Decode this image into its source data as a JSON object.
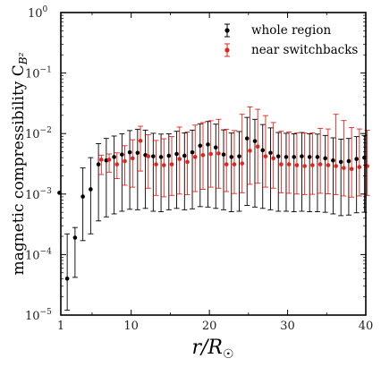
{
  "chart_data": {
    "type": "scatter",
    "title": "",
    "xlabel": "r/R",
    "xlabel_sub": "☉",
    "ylabel": "magnetic compressibility C",
    "ylabel_sub": "B²",
    "xlim": [
      1,
      40
    ],
    "ylim": [
      1e-05,
      1
    ],
    "yscale": "log",
    "grid": false,
    "legend_position": "top-right",
    "x_ticks": [
      1,
      10,
      20,
      30,
      40
    ],
    "x_tick_labels": [
      "1",
      "10",
      "20",
      "30",
      "40"
    ],
    "y_ticks": [
      -5,
      -4,
      -3,
      -2,
      -1,
      0
    ],
    "y_tick_base": "10",
    "y_tick_exponents": [
      "−5",
      "−4",
      "−3",
      "−2",
      "−1",
      "0"
    ],
    "series": [
      {
        "name": "whole region",
        "color": "#000000",
        "points": [
          {
            "x": 1,
            "y": 0.00105,
            "lo": null,
            "hi": null
          },
          {
            "x": 2,
            "y": 4e-05,
            "lo": 1.2e-05,
            "hi": 0.00022
          },
          {
            "x": 3,
            "y": 0.00019,
            "lo": 4.2e-05,
            "hi": 0.00028
          },
          {
            "x": 4,
            "y": 0.00091,
            "lo": 0.00017,
            "hi": 0.0027
          },
          {
            "x": 5,
            "y": 0.0012,
            "lo": 0.00022,
            "hi": 0.004
          },
          {
            "x": 6,
            "y": 0.0031,
            "lo": 0.00036,
            "hi": 0.0068
          },
          {
            "x": 7,
            "y": 0.0036,
            "lo": 0.00042,
            "hi": 0.0083
          },
          {
            "x": 8,
            "y": 0.0041,
            "lo": 0.00047,
            "hi": 0.0091
          },
          {
            "x": 9,
            "y": 0.0045,
            "lo": 0.00052,
            "hi": 0.0099
          },
          {
            "x": 10,
            "y": 0.0049,
            "lo": 0.00056,
            "hi": 0.0112
          },
          {
            "x": 11,
            "y": 0.0048,
            "lo": 0.00055,
            "hi": 0.0118
          },
          {
            "x": 12,
            "y": 0.0044,
            "lo": 0.00058,
            "hi": 0.0114
          },
          {
            "x": 13,
            "y": 0.0042,
            "lo": 0.00052,
            "hi": 0.0101
          },
          {
            "x": 14,
            "y": 0.0041,
            "lo": 0.00051,
            "hi": 0.0098
          },
          {
            "x": 15,
            "y": 0.0043,
            "lo": 0.00055,
            "hi": 0.0099
          },
          {
            "x": 16,
            "y": 0.0046,
            "lo": 0.00058,
            "hi": 0.0109
          },
          {
            "x": 17,
            "y": 0.0043,
            "lo": 0.00055,
            "hi": 0.0102
          },
          {
            "x": 18,
            "y": 0.0049,
            "lo": 0.00057,
            "hi": 0.0114
          },
          {
            "x": 19,
            "y": 0.0063,
            "lo": 0.00062,
            "hi": 0.0145
          },
          {
            "x": 20,
            "y": 0.0066,
            "lo": 0.00061,
            "hi": 0.0158
          },
          {
            "x": 21,
            "y": 0.0059,
            "lo": 0.00058,
            "hi": 0.0143
          },
          {
            "x": 22,
            "y": 0.0045,
            "lo": 0.00055,
            "hi": 0.0115
          },
          {
            "x": 23,
            "y": 0.0041,
            "lo": 0.00051,
            "hi": 0.0102
          },
          {
            "x": 24,
            "y": 0.0042,
            "lo": 0.00052,
            "hi": 0.0108
          },
          {
            "x": 25,
            "y": 0.0083,
            "lo": 0.00065,
            "hi": 0.0185
          },
          {
            "x": 26,
            "y": 0.0075,
            "lo": 0.00061,
            "hi": 0.0172
          },
          {
            "x": 27,
            "y": 0.0053,
            "lo": 0.00058,
            "hi": 0.0141
          },
          {
            "x": 28,
            "y": 0.0048,
            "lo": 0.00055,
            "hi": 0.0124
          },
          {
            "x": 29,
            "y": 0.0042,
            "lo": 0.00052,
            "hi": 0.0104
          },
          {
            "x": 30,
            "y": 0.0041,
            "lo": 0.00052,
            "hi": 0.0101
          },
          {
            "x": 31,
            "y": 0.0041,
            "lo": 0.00051,
            "hi": 0.0099
          },
          {
            "x": 32,
            "y": 0.0042,
            "lo": 0.00052,
            "hi": 0.0104
          },
          {
            "x": 33,
            "y": 0.0041,
            "lo": 0.00051,
            "hi": 0.0099
          },
          {
            "x": 34,
            "y": 0.0041,
            "lo": 0.00051,
            "hi": 0.0098
          },
          {
            "x": 35,
            "y": 0.0039,
            "lo": 0.0005,
            "hi": 0.0093
          },
          {
            "x": 36,
            "y": 0.0036,
            "lo": 0.00047,
            "hi": 0.0085
          },
          {
            "x": 37,
            "y": 0.0034,
            "lo": 0.00044,
            "hi": 0.0081
          },
          {
            "x": 38,
            "y": 0.0035,
            "lo": 0.00045,
            "hi": 0.0083
          },
          {
            "x": 39,
            "y": 0.0038,
            "lo": 0.00049,
            "hi": 0.0089
          },
          {
            "x": 40,
            "y": 0.004,
            "lo": 0.0005,
            "hi": 0.0093
          }
        ]
      },
      {
        "name": "near switchbacks",
        "color": "#e8221a",
        "points": [
          {
            "x": 6,
            "y": 0.0037,
            "lo": 0.0021,
            "hi": 0.0044
          },
          {
            "x": 7,
            "y": 0.0037,
            "lo": 0.0023,
            "hi": 0.0046
          },
          {
            "x": 8,
            "y": 0.0031,
            "lo": 0.0018,
            "hi": 0.0048
          },
          {
            "x": 9,
            "y": 0.0035,
            "lo": 0.0014,
            "hi": 0.0063
          },
          {
            "x": 10,
            "y": 0.0039,
            "lo": 0.0013,
            "hi": 0.0079
          },
          {
            "x": 11,
            "y": 0.0076,
            "lo": 0.0024,
            "hi": 0.0132
          },
          {
            "x": 12,
            "y": 0.0042,
            "lo": 0.00125,
            "hi": 0.0096
          },
          {
            "x": 13,
            "y": 0.0031,
            "lo": 0.00095,
            "hi": 0.0077
          },
          {
            "x": 14,
            "y": 0.003,
            "lo": 0.0009,
            "hi": 0.0082
          },
          {
            "x": 15,
            "y": 0.0031,
            "lo": 0.00095,
            "hi": 0.0089
          },
          {
            "x": 16,
            "y": 0.0038,
            "lo": 0.001,
            "hi": 0.0128
          },
          {
            "x": 17,
            "y": 0.0034,
            "lo": 0.00098,
            "hi": 0.0106
          },
          {
            "x": 18,
            "y": 0.0041,
            "lo": 0.0011,
            "hi": 0.0138
          },
          {
            "x": 19,
            "y": 0.0044,
            "lo": 0.0012,
            "hi": 0.0152
          },
          {
            "x": 20,
            "y": 0.0046,
            "lo": 0.0013,
            "hi": 0.0163
          },
          {
            "x": 21,
            "y": 0.0047,
            "lo": 0.00125,
            "hi": 0.0172
          },
          {
            "x": 22,
            "y": 0.0031,
            "lo": 0.0011,
            "hi": 0.0118
          },
          {
            "x": 23,
            "y": 0.0031,
            "lo": 0.00102,
            "hi": 0.0112
          },
          {
            "x": 24,
            "y": 0.0032,
            "lo": 0.00105,
            "hi": 0.0208
          },
          {
            "x": 25,
            "y": 0.0052,
            "lo": 0.00145,
            "hi": 0.0275
          },
          {
            "x": 26,
            "y": 0.0061,
            "lo": 0.00151,
            "hi": 0.0252
          },
          {
            "x": 27,
            "y": 0.0042,
            "lo": 0.0013,
            "hi": 0.0198
          },
          {
            "x": 28,
            "y": 0.0039,
            "lo": 0.00125,
            "hi": 0.0152
          },
          {
            "x": 29,
            "y": 0.0031,
            "lo": 0.00105,
            "hi": 0.0109
          },
          {
            "x": 30,
            "y": 0.0031,
            "lo": 0.00103,
            "hi": 0.0106
          },
          {
            "x": 31,
            "y": 0.003,
            "lo": 0.001,
            "hi": 0.0103
          },
          {
            "x": 32,
            "y": 0.0029,
            "lo": 0.00098,
            "hi": 0.0102
          },
          {
            "x": 33,
            "y": 0.003,
            "lo": 0.00099,
            "hi": 0.0103
          },
          {
            "x": 34,
            "y": 0.0031,
            "lo": 0.00103,
            "hi": 0.0122
          },
          {
            "x": 35,
            "y": 0.003,
            "lo": 0.00101,
            "hi": 0.0119
          },
          {
            "x": 36,
            "y": 0.0029,
            "lo": 0.00098,
            "hi": 0.0208
          },
          {
            "x": 37,
            "y": 0.0027,
            "lo": 0.00093,
            "hi": 0.0164
          },
          {
            "x": 38,
            "y": 0.0026,
            "lo": 0.00089,
            "hi": 0.0126
          },
          {
            "x": 39,
            "y": 0.0028,
            "lo": 0.00093,
            "hi": 0.0119
          },
          {
            "x": 40,
            "y": 0.0029,
            "lo": 0.00095,
            "hi": 0.0113
          }
        ]
      }
    ]
  }
}
